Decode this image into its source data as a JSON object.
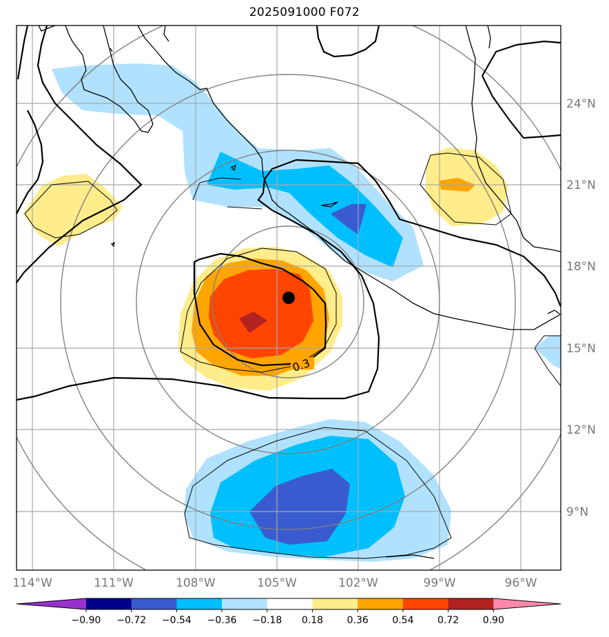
{
  "title": "2025091000 F072",
  "contour_label": "0.3",
  "lon_labels": [
    "114°W",
    "111°W",
    "108°W",
    "105°W",
    "102°W",
    "99°W",
    "96°W"
  ],
  "lat_labels": [
    "24°N",
    "21°N",
    "18°N",
    "15°N",
    "12°N",
    "9°N"
  ],
  "colorbar": {
    "ticks": [
      "−0.90",
      "−0.72",
      "−0.54",
      "−0.36",
      "−0.18",
      "0.18",
      "0.36",
      "0.54",
      "0.72",
      "0.90"
    ],
    "colors": [
      "#9932cc",
      "#00008b",
      "#3a5bd0",
      "#00bfff",
      "#b0e2ff",
      "#ffffff",
      "#ffec8b",
      "#ffa500",
      "#ff4500",
      "#b22222",
      "#ff88aa"
    ]
  },
  "storm_marker": "storm-center"
}
